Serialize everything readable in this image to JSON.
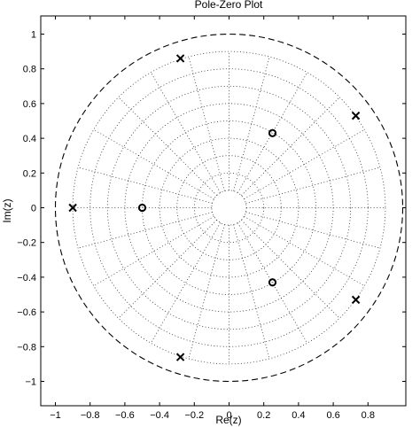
{
  "chart_data": {
    "type": "scatter",
    "title": "Pole-Zero Plot",
    "xlabel": "Re(z)",
    "ylabel": "Im(z)",
    "xlim": [
      -1.05,
      1.0
    ],
    "ylim": [
      -1.1,
      1.05
    ],
    "xticks": [
      -1,
      -0.8,
      -0.6,
      -0.4,
      -0.2,
      0,
      0.2,
      0.4,
      0.6,
      0.8
    ],
    "xtick_labels": [
      "−1",
      "−0.8",
      "−0.6",
      "−0.4",
      "−0.2",
      "0",
      "0.2",
      "0.4",
      "0.6",
      "0.8"
    ],
    "yticks": [
      1,
      0.8,
      0.6,
      0.4,
      0.2,
      0,
      -0.2,
      -0.4,
      -0.6,
      -0.8,
      -1
    ],
    "ytick_labels": [
      "1",
      "0.8",
      "0.6",
      "0.4",
      "0.2",
      "0",
      "−0.2",
      "−0.4",
      "−0.6",
      "−0.8",
      "−1"
    ],
    "grid": "polar-dotted",
    "unit_circle": "dashed",
    "poles": [
      {
        "x": -0.9,
        "y": 0
      },
      {
        "x": -0.28,
        "y": 0.86
      },
      {
        "x": 0.73,
        "y": 0.53
      },
      {
        "x": 0.73,
        "y": -0.53
      },
      {
        "x": -0.28,
        "y": -0.86
      }
    ],
    "zeros": [
      {
        "x": -0.5,
        "y": 0
      },
      {
        "x": 0.25,
        "y": 0.43
      },
      {
        "x": 0.25,
        "y": -0.43
      }
    ],
    "pole_marker": "x",
    "zero_marker": "o",
    "colors": {
      "marks": "#000000",
      "grid": "#333333",
      "background": "#ffffff"
    }
  }
}
